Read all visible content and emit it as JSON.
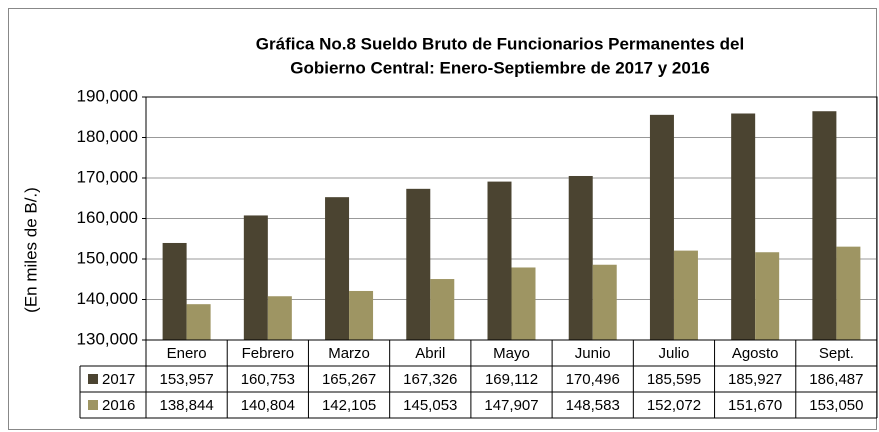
{
  "chart_data": {
    "type": "bar",
    "title": [
      "Gráfica No.8 Sueldo Bruto de Funcionarios Permanentes del",
      "Gobierno Central: Enero-Septiembre de 2017 y 2016"
    ],
    "ylabel": "(En miles de B/.)",
    "categories": [
      "Enero",
      "Febrero",
      "Marzo",
      "Abril",
      "Mayo",
      "Junio",
      "Julio",
      "Agosto",
      "Sept."
    ],
    "series": [
      {
        "name": "2017",
        "color": "#4b4431",
        "values": [
          153957,
          160753,
          165267,
          167326,
          169112,
          170496,
          185595,
          185927,
          186487
        ],
        "value_labels": [
          "153,957",
          "160,753",
          "165,267",
          "167,326",
          "169,112",
          "170,496",
          "185,595",
          "185,927",
          "186,487"
        ]
      },
      {
        "name": "2016",
        "color": "#9e9563",
        "values": [
          138844,
          140804,
          142105,
          145053,
          147907,
          148583,
          152072,
          151670,
          153050
        ],
        "value_labels": [
          "138,844",
          "140,804",
          "142,105",
          "145,053",
          "147,907",
          "148,583",
          "152,072",
          "151,670",
          "153,050"
        ]
      }
    ],
    "ylim": [
      130000,
      190000
    ],
    "yticks": [
      {
        "value": 130000,
        "label": "130,000"
      },
      {
        "value": 140000,
        "label": "140,000"
      },
      {
        "value": 150000,
        "label": "150,000"
      },
      {
        "value": 160000,
        "label": "160,000"
      },
      {
        "value": 170000,
        "label": "170,000"
      },
      {
        "value": 180000,
        "label": "180,000"
      },
      {
        "value": 190000,
        "label": "190,000"
      }
    ],
    "grid": true
  }
}
